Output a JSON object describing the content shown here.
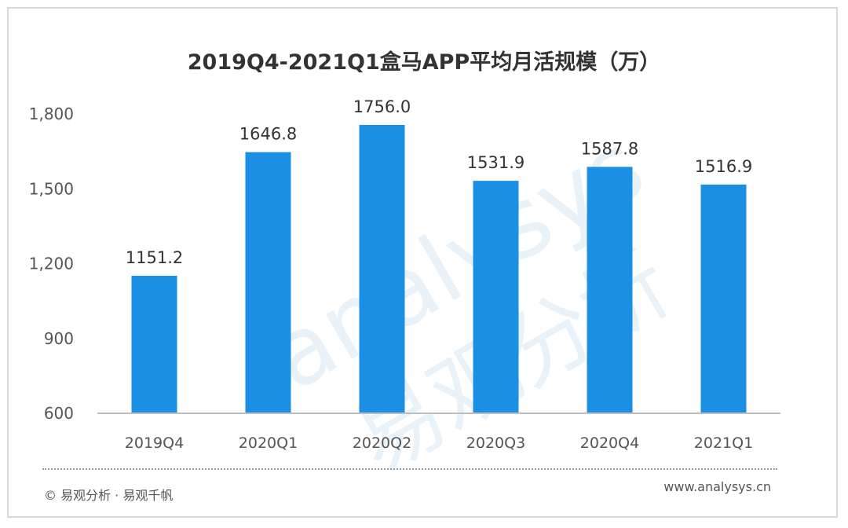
{
  "chart_data": {
    "type": "bar",
    "title": "2019Q4-2021Q1盒马APP平均月活规模（万）",
    "categories": [
      "2019Q4",
      "2020Q1",
      "2020Q2",
      "2020Q3",
      "2020Q4",
      "2021Q1"
    ],
    "values": [
      1151.2,
      1646.8,
      1756.0,
      1531.9,
      1587.8,
      1516.9
    ],
    "value_labels": [
      "1151.2",
      "1646.8",
      "1756.0",
      "1531.9",
      "1587.8",
      "1516.9"
    ],
    "ylim": [
      600,
      1800
    ],
    "yticks": [
      600,
      900,
      1200,
      1500,
      1800
    ],
    "ytick_labels": [
      "600",
      "900",
      "1,200",
      "1,500",
      "1,800"
    ],
    "bar_color": "#1a8fe3",
    "grid": false
  },
  "watermark": {
    "text_en": "analysys",
    "text_cn": "易观分析"
  },
  "footer": {
    "source": "© 易观分析 · 易观千帆",
    "website": "www.analysys.cn"
  }
}
